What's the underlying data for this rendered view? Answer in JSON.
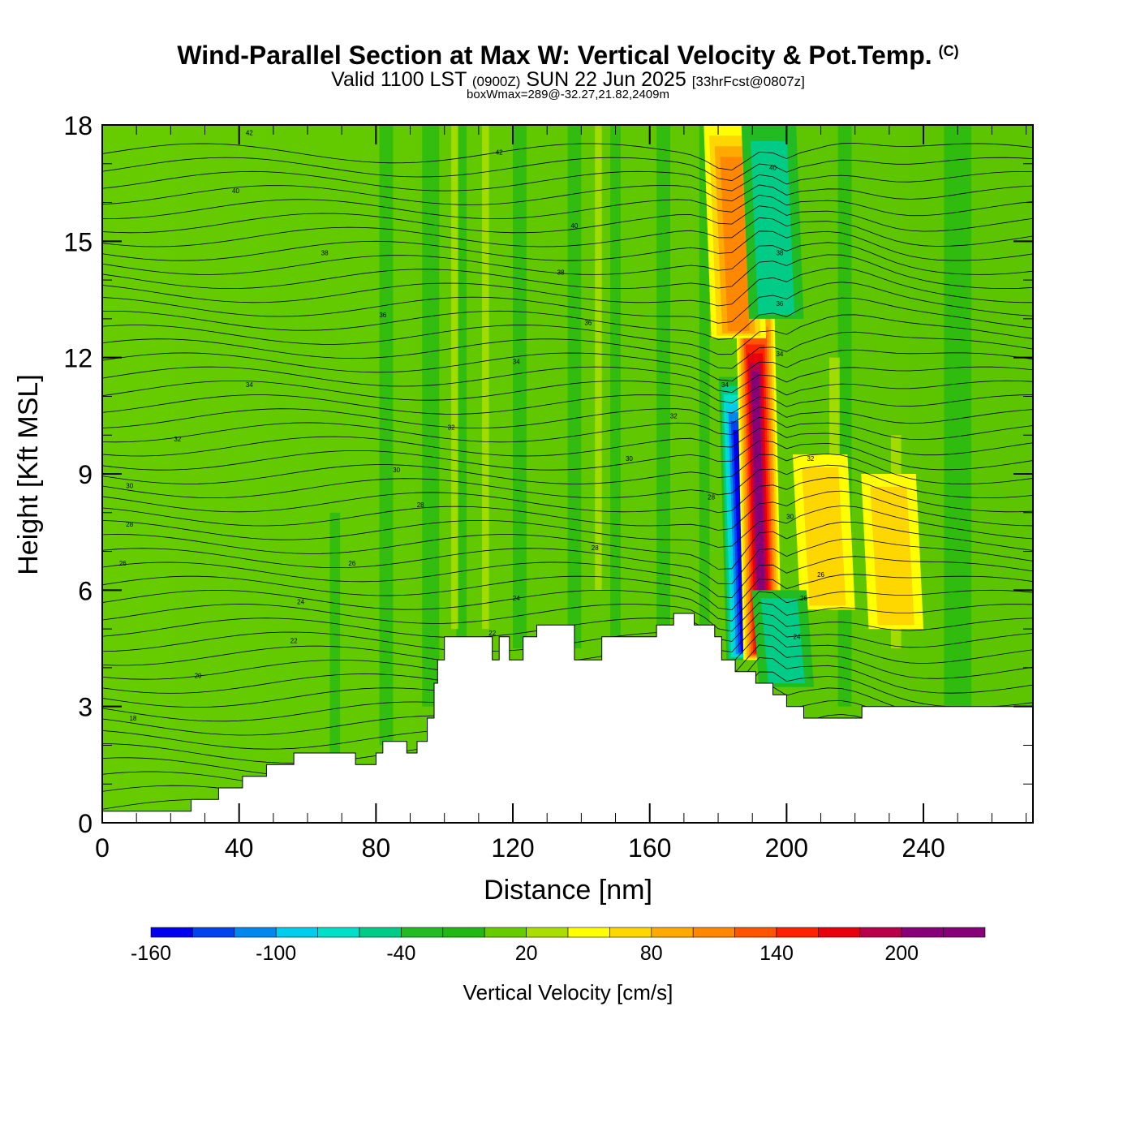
{
  "header": {
    "title": "Wind-Parallel Section at Max W: Vertical Velocity & Pot.Temp.",
    "copyright": "(C)",
    "valid_main": "Valid 1100 LST",
    "valid_utc": "(0900Z)",
    "valid_date": "SUN 22 Jun 2025",
    "forecast": "[33hrFcst@0807z]",
    "boxwmax": "boxWmax=289@-32.27,21.82,2409m"
  },
  "chart_data": {
    "type": "heatmap",
    "xlabel": "Distance [nm]",
    "ylabel": "Height [Kft MSL]",
    "xlim": [
      0,
      272
    ],
    "ylim": [
      0,
      18
    ],
    "x_ticks": [
      "0",
      "40",
      "80",
      "120",
      "160",
      "200",
      "240"
    ],
    "y_ticks": [
      "0",
      "3",
      "6",
      "9",
      "12",
      "15",
      "18"
    ],
    "colorbar": {
      "title": "Vertical Velocity [cm/s]",
      "levels": [
        -160,
        -140,
        -120,
        -100,
        -80,
        -60,
        -40,
        -20,
        0,
        20,
        40,
        60,
        80,
        100,
        120,
        140,
        160,
        180,
        200,
        220,
        240
      ],
      "tick_labels": [
        "-160",
        "-100",
        "-40",
        "20",
        "80",
        "140",
        "200"
      ],
      "colors": [
        "#0000ee",
        "#0044ee",
        "#0088ee",
        "#00ccee",
        "#00e0c8",
        "#00cc88",
        "#22bb22",
        "#22b814",
        "#66cc00",
        "#aadd00",
        "#ffff00",
        "#ffd700",
        "#ffaa00",
        "#ff8800",
        "#ff5500",
        "#ff2200",
        "#e8000c",
        "#b8004a",
        "#880077",
        "#880077"
      ]
    },
    "velocity_features": [
      {
        "x": 188,
        "z_bottom": 4.2,
        "z_top": 11.5,
        "value": -160
      },
      {
        "x": 193,
        "z_bottom": 4.2,
        "z_top": 13.5,
        "value": 200
      },
      {
        "x": 186,
        "z_bottom": 12.5,
        "z_top": 18,
        "value": 100
      },
      {
        "x": 197,
        "z_bottom": 13,
        "z_top": 18,
        "value": -60
      },
      {
        "x": 212,
        "z_bottom": 5.5,
        "z_top": 9.5,
        "value": 60
      },
      {
        "x": 232,
        "z_bottom": 5,
        "z_top": 9,
        "value": 60
      },
      {
        "x": 200,
        "z_bottom": 3.5,
        "z_top": 6,
        "value": -60
      }
    ],
    "terrain_profile": {
      "x": [
        0,
        26,
        26,
        34,
        34,
        41,
        41,
        48,
        48,
        56,
        56,
        74,
        74,
        80,
        80,
        82,
        82,
        89,
        89,
        92,
        92,
        95,
        95,
        97,
        97,
        98,
        98,
        100,
        100,
        114,
        114,
        116,
        116,
        119,
        119,
        123,
        123,
        127,
        127,
        138,
        138,
        146,
        146,
        155,
        155,
        162,
        162,
        167,
        167,
        173,
        173,
        179,
        179,
        181,
        181,
        185,
        185,
        191,
        191,
        196,
        196,
        200,
        200,
        205,
        205,
        210,
        210,
        222,
        222,
        235,
        235,
        272
      ],
      "z": [
        0.3,
        0.3,
        0.6,
        0.6,
        0.9,
        0.9,
        1.2,
        1.2,
        1.5,
        1.5,
        1.8,
        1.8,
        1.5,
        1.5,
        1.8,
        1.8,
        2.1,
        2.1,
        1.8,
        1.8,
        2.1,
        2.1,
        2.7,
        2.7,
        3.6,
        3.6,
        4.2,
        4.2,
        4.8,
        4.8,
        4.2,
        4.2,
        4.8,
        4.8,
        4.2,
        4.2,
        4.8,
        4.8,
        5.1,
        5.1,
        4.2,
        4.2,
        4.8,
        4.8,
        4.8,
        4.8,
        5.1,
        5.1,
        5.4,
        5.4,
        5.1,
        5.1,
        4.8,
        4.8,
        4.2,
        4.2,
        3.9,
        3.9,
        3.6,
        3.6,
        3.3,
        3.3,
        3.0,
        3.0,
        2.7,
        2.7,
        2.7,
        2.7,
        3.0,
        3.0,
        3.0,
        3.0
      ]
    },
    "theta_contour_labels": [
      {
        "x": 43,
        "z": 17.8,
        "label": "42"
      },
      {
        "x": 39,
        "z": 16.3,
        "label": "40"
      },
      {
        "x": 65,
        "z": 14.7,
        "label": "38"
      },
      {
        "x": 82,
        "z": 13.1,
        "label": "36"
      },
      {
        "x": 43,
        "z": 11.3,
        "label": "34"
      },
      {
        "x": 22,
        "z": 9.9,
        "label": "32"
      },
      {
        "x": 8,
        "z": 8.7,
        "label": "30"
      },
      {
        "x": 8,
        "z": 7.7,
        "label": "28"
      },
      {
        "x": 6,
        "z": 6.7,
        "label": "26"
      },
      {
        "x": 58,
        "z": 5.7,
        "label": "24"
      },
      {
        "x": 56,
        "z": 4.7,
        "label": "22"
      },
      {
        "x": 28,
        "z": 3.8,
        "label": "20"
      },
      {
        "x": 9,
        "z": 2.7,
        "label": "18"
      },
      {
        "x": 116,
        "z": 17.3,
        "label": "42"
      },
      {
        "x": 138,
        "z": 15.4,
        "label": "40"
      },
      {
        "x": 134,
        "z": 14.2,
        "label": "38"
      },
      {
        "x": 142,
        "z": 12.9,
        "label": "36"
      },
      {
        "x": 121,
        "z": 11.9,
        "label": "34"
      },
      {
        "x": 102,
        "z": 10.2,
        "label": "32"
      },
      {
        "x": 86,
        "z": 9.1,
        "label": "30"
      },
      {
        "x": 93,
        "z": 8.2,
        "label": "28"
      },
      {
        "x": 73,
        "z": 6.7,
        "label": "26"
      },
      {
        "x": 121,
        "z": 5.8,
        "label": "24"
      },
      {
        "x": 114,
        "z": 4.9,
        "label": "22"
      },
      {
        "x": 154,
        "z": 9.4,
        "label": "30"
      },
      {
        "x": 167,
        "z": 10.5,
        "label": "32"
      },
      {
        "x": 144,
        "z": 7.1,
        "label": "28"
      },
      {
        "x": 196,
        "z": 16.9,
        "label": "40"
      },
      {
        "x": 198,
        "z": 14.7,
        "label": "38"
      },
      {
        "x": 198,
        "z": 13.4,
        "label": "36"
      },
      {
        "x": 198,
        "z": 12.1,
        "label": "34"
      },
      {
        "x": 182,
        "z": 11.3,
        "label": "34"
      },
      {
        "x": 178,
        "z": 8.4,
        "label": "28"
      },
      {
        "x": 207,
        "z": 9.4,
        "label": "32"
      },
      {
        "x": 201,
        "z": 7.9,
        "label": "30"
      },
      {
        "x": 210,
        "z": 6.4,
        "label": "26"
      },
      {
        "x": 205,
        "z": 5.8,
        "label": "26"
      },
      {
        "x": 203,
        "z": 4.8,
        "label": "24"
      }
    ]
  }
}
